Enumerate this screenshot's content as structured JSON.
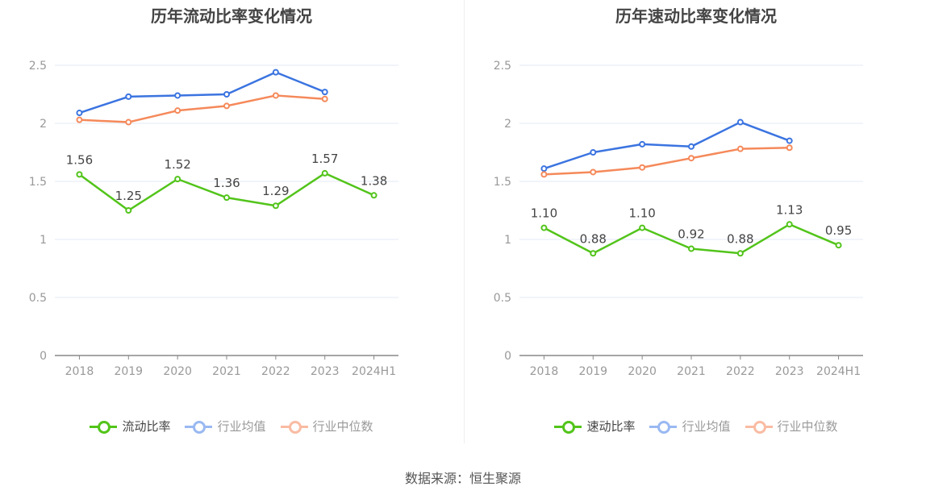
{
  "source": "数据来源：恒生聚源",
  "chart_data": [
    {
      "type": "line",
      "title": "历年流动比率变化情况",
      "categories": [
        "2018",
        "2019",
        "2020",
        "2021",
        "2022",
        "2023",
        "2024H1"
      ],
      "ylim": [
        0,
        2.5
      ],
      "yticks": [
        "0",
        "0.5",
        "1",
        "1.5",
        "2",
        "2.5"
      ],
      "ytick_values": [
        0,
        0.5,
        1,
        1.5,
        2,
        2.5
      ],
      "grid": true,
      "legend_position": "bottom",
      "series": [
        {
          "name": "流动比率",
          "color": "#52c41a",
          "values": [
            1.56,
            1.25,
            1.52,
            1.36,
            1.29,
            1.57,
            1.38
          ],
          "labels": [
            "1.56",
            "1.25",
            "1.52",
            "1.36",
            "1.29",
            "1.57",
            "1.38"
          ],
          "show_labels": true
        },
        {
          "name": "行业均值",
          "color": "#3b74e0",
          "values": [
            2.09,
            2.23,
            2.24,
            2.25,
            2.44,
            2.27,
            null
          ],
          "show_labels": false
        },
        {
          "name": "行业中位数",
          "color": "#f5895a",
          "values": [
            2.03,
            2.01,
            2.11,
            2.15,
            2.24,
            2.21,
            null
          ],
          "show_labels": false
        }
      ]
    },
    {
      "type": "line",
      "title": "历年速动比率变化情况",
      "categories": [
        "2018",
        "2019",
        "2020",
        "2021",
        "2022",
        "2023",
        "2024H1"
      ],
      "ylim": [
        0,
        2.5
      ],
      "yticks": [
        "0",
        "0.5",
        "1",
        "1.5",
        "2",
        "2.5"
      ],
      "ytick_values": [
        0,
        0.5,
        1,
        1.5,
        2,
        2.5
      ],
      "grid": true,
      "legend_position": "bottom",
      "series": [
        {
          "name": "速动比率",
          "color": "#52c41a",
          "values": [
            1.1,
            0.88,
            1.1,
            0.92,
            0.88,
            1.13,
            0.95
          ],
          "labels": [
            "1.10",
            "0.88",
            "1.10",
            "0.92",
            "0.88",
            "1.13",
            "0.95"
          ],
          "show_labels": true
        },
        {
          "name": "行业均值",
          "color": "#3b74e0",
          "values": [
            1.61,
            1.75,
            1.82,
            1.8,
            2.01,
            1.85,
            null
          ],
          "show_labels": false
        },
        {
          "name": "行业中位数",
          "color": "#f5895a",
          "values": [
            1.56,
            1.58,
            1.62,
            1.7,
            1.78,
            1.79,
            null
          ],
          "show_labels": false
        }
      ]
    }
  ]
}
